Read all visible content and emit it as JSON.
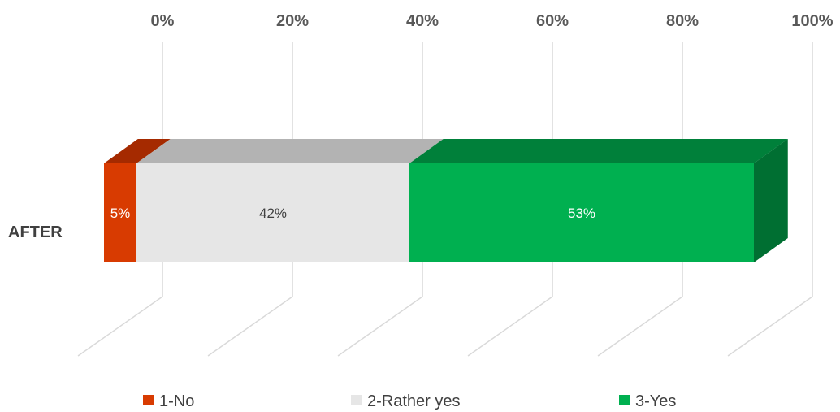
{
  "chart_data": {
    "type": "bar",
    "orientation": "horizontal-stacked-100",
    "three_d": true,
    "categories": [
      "AFTER"
    ],
    "x_ticks": [
      "0%",
      "20%",
      "40%",
      "60%",
      "80%",
      "100%"
    ],
    "xlim": [
      0,
      100
    ],
    "grid": true,
    "legend_position": "bottom",
    "series": [
      {
        "name": "1-No",
        "values": [
          5
        ],
        "label": "5%",
        "color": "#d83b01",
        "top_color": "#a52a00",
        "side_color": "#8c2400",
        "label_color": "#ffffff"
      },
      {
        "name": "2-Rather yes",
        "values": [
          42
        ],
        "label": "42%",
        "color": "#e6e6e6",
        "top_color": "#b3b3b3",
        "side_color": "#9e9e9e",
        "label_color": "#404040"
      },
      {
        "name": "3-Yes",
        "values": [
          53
        ],
        "label": "53%",
        "color": "#00b050",
        "top_color": "#00803a",
        "side_color": "#006f32",
        "label_color": "#ffffff"
      }
    ]
  }
}
